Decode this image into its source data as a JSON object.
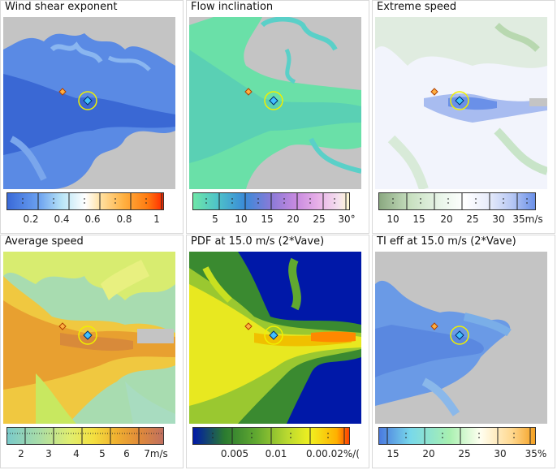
{
  "panels": [
    {
      "title": "Wind shear exponent",
      "scale_labels": [
        "0.2",
        "0.4",
        "0.6",
        "0.8",
        "1"
      ],
      "scale_colors": [
        "#3a6ad8",
        "#6aa0f0",
        "#b8e4f6",
        "#ffffff",
        "#ffe0a0",
        "#ffb040",
        "#ff7a10",
        "#ff2a00"
      ]
    },
    {
      "title": "Flow inclination",
      "scale_labels": [
        "5",
        "10",
        "15",
        "20",
        "25",
        "30°"
      ],
      "scale_colors": [
        "#6ee6a8",
        "#4fc4c8",
        "#3a8ad8",
        "#8a7ad8",
        "#c88ae0",
        "#e8b0e8",
        "#f4e0ee",
        "#fff8d0"
      ]
    },
    {
      "title": "Extreme speed",
      "scale_labels": [
        "10",
        "15",
        "20",
        "25",
        "30",
        "35m/s"
      ],
      "scale_colors": [
        "#8aa880",
        "#c8e0c0",
        "#eaf6ea",
        "#ffffff",
        "#e8ecfa",
        "#b8c8f4",
        "#6a90e8"
      ]
    },
    {
      "title": "Average speed",
      "scale_labels": [
        "2",
        "3",
        "4",
        "5",
        "6",
        "7m/s"
      ],
      "scale_colors": [
        "#7acaca",
        "#a8dca8",
        "#e0ee70",
        "#f4e040",
        "#f0b030",
        "#e08a3a",
        "#c07060"
      ]
    },
    {
      "title": "PDF at 15.0 m/s (2*Vave)",
      "scale_labels": [
        "0.005",
        "0.01",
        "0.00.02%/("
      ],
      "scale_colors": [
        "#0018a8",
        "#2a7a30",
        "#60a830",
        "#b8d830",
        "#f0f020",
        "#ffb000",
        "#ff4000"
      ]
    },
    {
      "title": "TI eff at 15.0 m/s (2*Vave)",
      "scale_labels": [
        "15",
        "20",
        "25",
        "30",
        "35%"
      ],
      "scale_colors": [
        "#4a7ae0",
        "#78d8ea",
        "#a8f0b0",
        "#fffff0",
        "#ffd890",
        "#f4a020"
      ]
    }
  ]
}
